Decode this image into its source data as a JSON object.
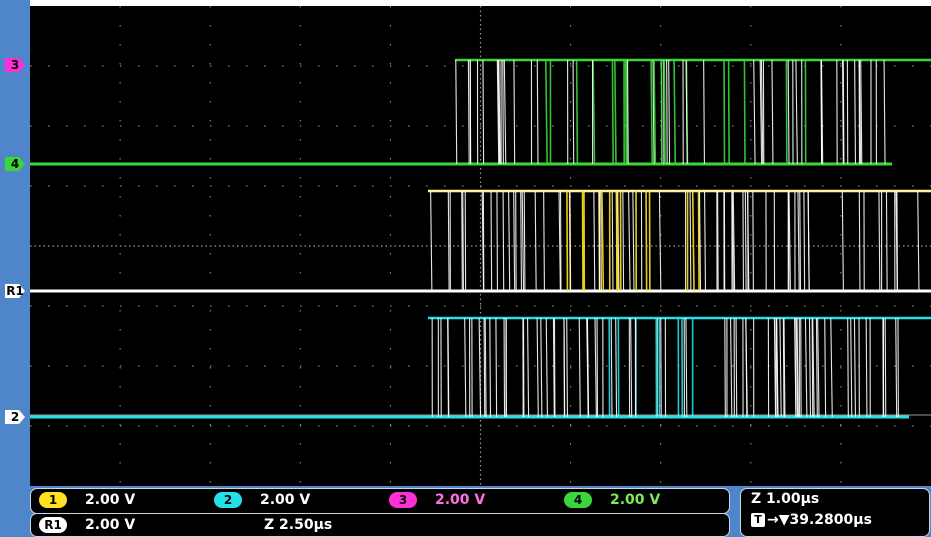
{
  "markers": [
    {
      "label": "3",
      "name": "channel-3-marker",
      "color": "#ff2fd6"
    },
    {
      "label": "4",
      "name": "channel-4-marker",
      "color": "#39d739"
    },
    {
      "label": "R1",
      "name": "reference-r1-marker",
      "color": "#ffffff"
    },
    {
      "label": "2",
      "name": "channel-2-marker",
      "color": "#ffffff"
    }
  ],
  "channels": [
    {
      "label": "1",
      "value": "2.00 V",
      "color": "#ffe21f"
    },
    {
      "label": "2",
      "value": "2.00 V",
      "color": "#25e0e6"
    },
    {
      "label": "3",
      "value": "2.00 V",
      "color": "#ff2fd6"
    },
    {
      "label": "4",
      "value": "2.00 V",
      "color": "#39d739"
    }
  ],
  "reference": {
    "label": "R1",
    "value": "2.00 V",
    "zoom": "Z 2.50µs"
  },
  "timebase": {
    "zoom": "Z 1.00µs",
    "trigger_position": "→▼39.2800µs",
    "trigger_icon": "T"
  },
  "colors": {
    "ch1": "#ffe21f",
    "ch2": "#25e0e6",
    "ch3": "#ff2fd6",
    "ch4": "#39d739",
    "persistence": "#ffffff",
    "frame": "#4f86c9"
  }
}
